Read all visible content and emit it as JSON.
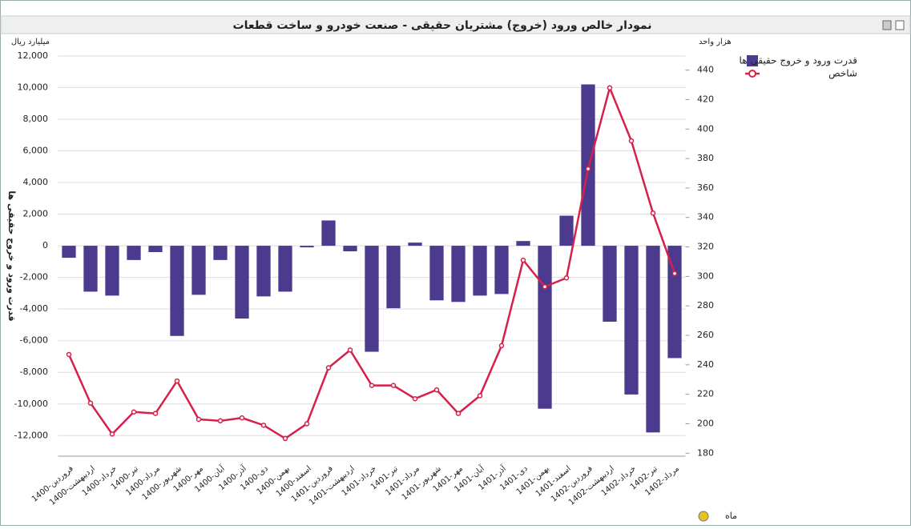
{
  "chart_data": {
    "type": "bar-line",
    "title": "نمودار خالص ورود (خروج) مشتریان حقیقی - صنعت خودرو و ساخت قطعات",
    "y_unit": "میلیارد ریال",
    "y2_unit": "هزار واحد",
    "y_label": "قدرت ورود و خروج حقیقی ها",
    "x_label": "ماه",
    "categories": [
      "1400-فروردین",
      "1400-اردیبهشت",
      "1400-خرداد",
      "1400-تیر",
      "1400-مرداد",
      "1400-شهریور",
      "1400-مهر",
      "1400-آبان",
      "1400-آذر",
      "1400-دی",
      "1400-بهمن",
      "1400-اسفند",
      "1401-فروردین",
      "1401-اردیبهشت",
      "1401-خرداد",
      "1401-تیر",
      "1401-مرداد",
      "1401-شهریور",
      "1401-مهر",
      "1401-آبان",
      "1401-آذر",
      "1401-دی",
      "1401-بهمن",
      "1401-اسفند",
      "1402-فروردین",
      "1402-اردیبهشت",
      "1402-خرداد",
      "1402-تیر",
      "1402-مرداد"
    ],
    "series": [
      {
        "name": "قدرت ورود و خروج حقیقی ها",
        "color": "#4b3a8e",
        "kind": "bar",
        "values": [
          -760,
          -2900,
          -3150,
          -900,
          -400,
          -5700,
          -3100,
          -900,
          -4600,
          -3200,
          -2900,
          -100,
          1600,
          -350,
          -6700,
          -3950,
          200,
          -3450,
          -3550,
          -3150,
          -3050,
          300,
          -10300,
          1900,
          10200,
          -4800,
          -9400,
          -11800,
          -7100
        ]
      },
      {
        "name": "شاخص",
        "color": "#d6204a",
        "kind": "line",
        "axis": "y2",
        "values": [
          247,
          214,
          193,
          208,
          207,
          229,
          203,
          202,
          204,
          199,
          190,
          200,
          238,
          250,
          226,
          226,
          217,
          223,
          207,
          219,
          253,
          311,
          293,
          299,
          373,
          428,
          392,
          343,
          302
        ]
      }
    ],
    "ylim": [
      -13300,
      12500
    ],
    "yticks": [
      {
        "value": -12000,
        "label": "-12,000"
      },
      {
        "value": -10000,
        "label": "-10,000"
      },
      {
        "value": -8000,
        "label": "-8,000"
      },
      {
        "value": -6000,
        "label": "-6,000"
      },
      {
        "value": -4000,
        "label": "-4,000"
      },
      {
        "value": -2000,
        "label": "-2,000"
      },
      0,
      {
        "value": 2000,
        "label": "2,000"
      },
      {
        "value": 4000,
        "label": "4,000"
      },
      {
        "value": 6000,
        "label": "6,000"
      },
      {
        "value": 8000,
        "label": "8,000"
      },
      {
        "value": 10000,
        "label": "10,000"
      },
      {
        "value": 12000,
        "label": "12,000"
      }
    ],
    "y2lim": [
      178,
      455
    ],
    "y2ticks": [
      180,
      200,
      220,
      240,
      260,
      280,
      300,
      320,
      340,
      360,
      380,
      400,
      420,
      440
    ],
    "grid": true
  }
}
